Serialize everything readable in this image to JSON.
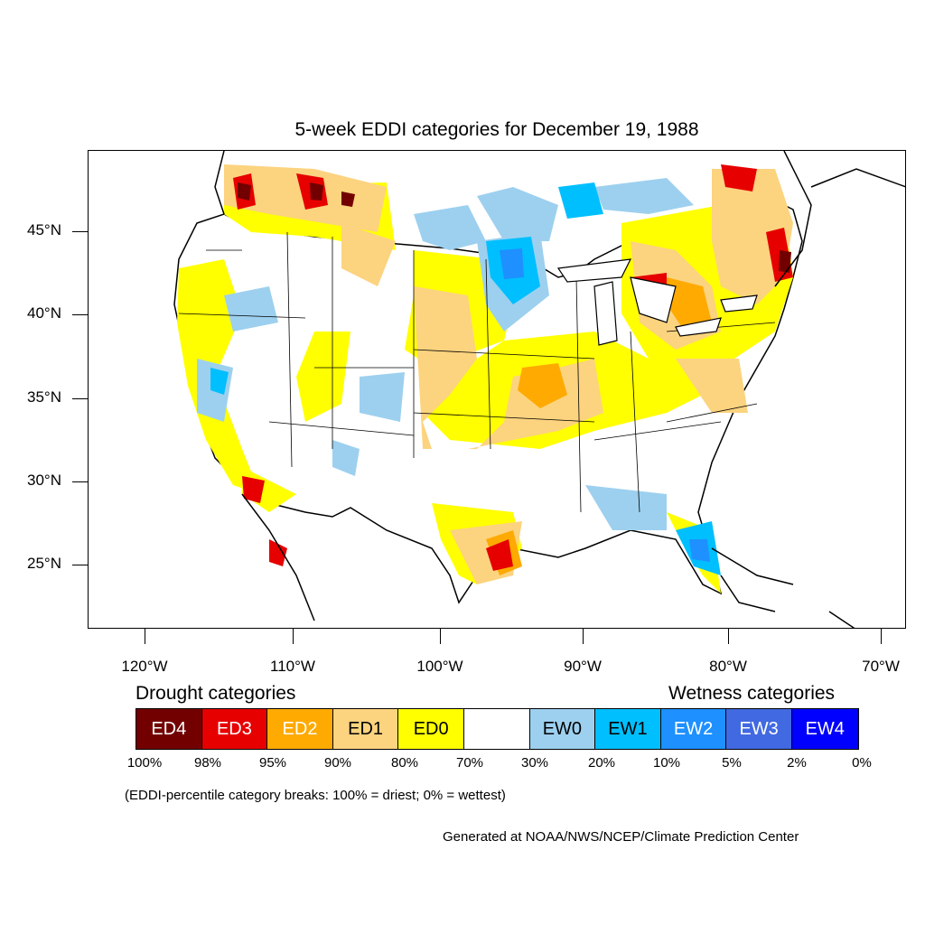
{
  "title": "5-week EDDI categories for December 19, 1988",
  "lat_labels": [
    "45°N",
    "40°N",
    "35°N",
    "30°N",
    "25°N"
  ],
  "lon_labels": [
    "120°W",
    "110°W",
    "100°W",
    "90°W",
    "80°W",
    "70°W"
  ],
  "legend": {
    "drought_heading": "Drought categories",
    "wetness_heading": "Wetness categories",
    "boxes": [
      {
        "label": "ED4",
        "color": "#730000",
        "text_color": "#ffffff"
      },
      {
        "label": "ED3",
        "color": "#e60000",
        "text_color": "#ffffff"
      },
      {
        "label": "ED2",
        "color": "#ffaa00",
        "text_color": "#ffffff"
      },
      {
        "label": "ED1",
        "color": "#fcd37f",
        "text_color": "#000000"
      },
      {
        "label": "ED0",
        "color": "#ffff00",
        "text_color": "#000000"
      },
      {
        "label": "",
        "color": "#ffffff",
        "text_color": "#000000"
      },
      {
        "label": "EW0",
        "color": "#9dd0ef",
        "text_color": "#000000"
      },
      {
        "label": "EW1",
        "color": "#00bfff",
        "text_color": "#000000"
      },
      {
        "label": "EW2",
        "color": "#1e90ff",
        "text_color": "#ffffff"
      },
      {
        "label": "EW3",
        "color": "#4169e1",
        "text_color": "#ffffff"
      },
      {
        "label": "EW4",
        "color": "#0000ff",
        "text_color": "#ffffff"
      }
    ],
    "percent_breaks": [
      "100%",
      "98%",
      "95%",
      "90%",
      "80%",
      "70%",
      "30%",
      "20%",
      "10%",
      "5%",
      "2%",
      "0%"
    ]
  },
  "note": "(EDDI-percentile category breaks: 100% = driest; 0% = wettest)",
  "credit": "Generated at NOAA/NWS/NCEP/Climate Prediction Center"
}
